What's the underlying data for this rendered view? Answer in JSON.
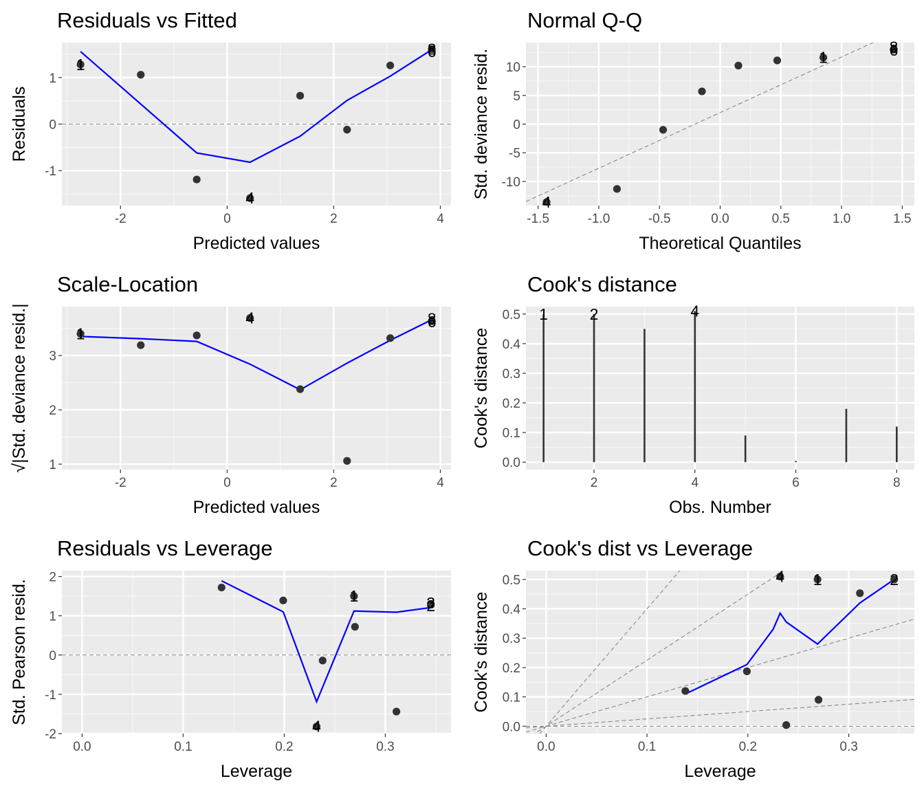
{
  "chart_data": [
    {
      "type": "scatter",
      "title": "Residuals vs Fitted",
      "xlabel": "Predicted values",
      "ylabel": "Residuals",
      "xlim": [
        -3.1,
        4.2
      ],
      "ylim": [
        -1.75,
        1.75
      ],
      "xticks": [
        -2,
        0,
        2,
        4
      ],
      "yticks": [
        -1,
        0,
        1
      ],
      "x_tick_labels": [
        "-2",
        "0",
        "2",
        "4"
      ],
      "y_tick_labels": [
        "-1",
        "0",
        "1"
      ],
      "grid": true,
      "hline": 0,
      "points": [
        {
          "x": -2.75,
          "y": 1.28
        },
        {
          "x": -1.62,
          "y": 1.06
        },
        {
          "x": -0.57,
          "y": -1.19
        },
        {
          "x": 0.43,
          "y": -1.59
        },
        {
          "x": 1.37,
          "y": 0.61
        },
        {
          "x": 2.25,
          "y": -0.12
        },
        {
          "x": 3.06,
          "y": 1.26
        },
        {
          "x": 3.84,
          "y": 1.61
        }
      ],
      "point_labels": [
        {
          "x": -2.75,
          "y": 1.28,
          "text": "1"
        },
        {
          "x": 0.43,
          "y": -1.59,
          "text": "4"
        },
        {
          "x": 3.84,
          "y": 1.61,
          "text": "8"
        },
        {
          "x": 3.84,
          "y": 1.56,
          "text": "6"
        }
      ],
      "smooth": {
        "x": [
          -2.75,
          -1.62,
          -0.57,
          0.43,
          1.37,
          2.25,
          3.06,
          3.84
        ],
        "y": [
          1.56,
          0.43,
          -0.62,
          -0.82,
          -0.26,
          0.51,
          1.03,
          1.6
        ]
      }
    },
    {
      "type": "scatter",
      "title": "Normal Q-Q",
      "xlabel": "Theoretical Quantiles",
      "ylabel": "Std. deviance resid.",
      "xlim": [
        -1.6,
        1.6
      ],
      "ylim": [
        -14.2,
        14.2
      ],
      "xticks": [
        -1.5,
        -1.0,
        -0.5,
        0.0,
        0.5,
        1.0,
        1.5
      ],
      "yticks": [
        -10,
        -5,
        0,
        5,
        10
      ],
      "x_tick_labels": [
        "-1.5",
        "-1.0",
        "-0.5",
        "0.0",
        "0.5",
        "1.0",
        "1.5"
      ],
      "y_tick_labels": [
        "-10",
        "-5",
        "0",
        "5",
        "10"
      ],
      "grid": true,
      "refline": {
        "x1": -1.6,
        "y1": -13.5,
        "x2": 1.6,
        "y2": 17.5
      },
      "points": [
        {
          "x": -1.43,
          "y": -13.6
        },
        {
          "x": -0.85,
          "y": -11.3
        },
        {
          "x": -0.47,
          "y": -1.0
        },
        {
          "x": -0.15,
          "y": 5.7
        },
        {
          "x": 0.15,
          "y": 10.2
        },
        {
          "x": 0.47,
          "y": 11.1
        },
        {
          "x": 0.85,
          "y": 11.6
        },
        {
          "x": 1.43,
          "y": 13.0
        }
      ],
      "point_labels": [
        {
          "x": -1.43,
          "y": -13.6,
          "text": "4"
        },
        {
          "x": 0.85,
          "y": 11.6,
          "text": "1"
        },
        {
          "x": 1.43,
          "y": 13.4,
          "text": "8"
        },
        {
          "x": 1.43,
          "y": 12.9,
          "text": "6"
        }
      ]
    },
    {
      "type": "scatter",
      "title": "Scale-Location",
      "xlabel": "Predicted values",
      "ylabel": "|Std. deviance resid.|",
      "ylabel_sqrt": "√",
      "xlim": [
        -3.1,
        4.2
      ],
      "ylim": [
        0.9,
        3.9
      ],
      "xticks": [
        -2,
        0,
        2,
        4
      ],
      "yticks": [
        1,
        2,
        3
      ],
      "x_tick_labels": [
        "-2",
        "0",
        "2",
        "4"
      ],
      "y_tick_labels": [
        "1",
        "2",
        "3"
      ],
      "grid": true,
      "points": [
        {
          "x": -2.75,
          "y": 3.4
        },
        {
          "x": -1.62,
          "y": 3.19
        },
        {
          "x": -0.57,
          "y": 3.37
        },
        {
          "x": 0.43,
          "y": 3.69
        },
        {
          "x": 1.37,
          "y": 2.38
        },
        {
          "x": 2.25,
          "y": 1.06
        },
        {
          "x": 3.06,
          "y": 3.32
        },
        {
          "x": 3.84,
          "y": 3.63
        }
      ],
      "point_labels": [
        {
          "x": -2.75,
          "y": 3.4,
          "text": "1"
        },
        {
          "x": 0.43,
          "y": 3.69,
          "text": "4"
        },
        {
          "x": 3.84,
          "y": 3.68,
          "text": "8"
        },
        {
          "x": 3.84,
          "y": 3.62,
          "text": "6"
        }
      ],
      "smooth": {
        "x": [
          -2.75,
          -1.62,
          -0.57,
          0.43,
          1.37,
          2.25,
          3.06,
          3.84
        ],
        "y": [
          3.35,
          3.31,
          3.26,
          2.84,
          2.37,
          2.86,
          3.28,
          3.66
        ]
      }
    },
    {
      "type": "bar",
      "title": "Cook's distance",
      "xlabel": "Obs. Number",
      "ylabel": "Cook's distance",
      "xlim": [
        0.65,
        8.35
      ],
      "ylim": [
        -0.025,
        0.525
      ],
      "xticks": [
        2,
        4,
        6,
        8
      ],
      "yticks": [
        0.0,
        0.1,
        0.2,
        0.3,
        0.4,
        0.5
      ],
      "x_tick_labels": [
        "2",
        "4",
        "6",
        "8"
      ],
      "y_tick_labels": [
        "0.0",
        "0.1",
        "0.2",
        "0.3",
        "0.4",
        "0.5"
      ],
      "grid": true,
      "categories": [
        1,
        2,
        3,
        4,
        5,
        6,
        7,
        8
      ],
      "values": [
        0.5,
        0.5,
        0.45,
        0.51,
        0.09,
        0.004,
        0.18,
        0.12
      ],
      "point_labels": [
        {
          "x": 1,
          "y": 0.5,
          "text": "1"
        },
        {
          "x": 2,
          "y": 0.5,
          "text": "2"
        },
        {
          "x": 4,
          "y": 0.51,
          "text": "4"
        }
      ]
    },
    {
      "type": "scatter",
      "title": "Residuals vs Leverage",
      "xlabel": "Leverage",
      "ylabel": "Std. Pearson resid.",
      "xlim": [
        -0.02,
        0.365
      ],
      "ylim": [
        -2.0,
        2.15
      ],
      "xticks": [
        0.0,
        0.1,
        0.2,
        0.3
      ],
      "yticks": [
        -2,
        -1,
        0,
        1,
        2
      ],
      "x_tick_labels": [
        "0.0",
        "0.1",
        "0.2",
        "0.3"
      ],
      "y_tick_labels": [
        "-2",
        "-1",
        "0",
        "1",
        "2"
      ],
      "grid": true,
      "hline": 0,
      "points": [
        {
          "x": 0.138,
          "y": 1.72
        },
        {
          "x": 0.199,
          "y": 1.39
        },
        {
          "x": 0.232,
          "y": -1.82
        },
        {
          "x": 0.238,
          "y": -0.14
        },
        {
          "x": 0.269,
          "y": 1.5
        },
        {
          "x": 0.27,
          "y": 0.72
        },
        {
          "x": 0.311,
          "y": -1.44
        },
        {
          "x": 0.345,
          "y": 1.3
        }
      ],
      "point_labels": [
        {
          "x": 0.232,
          "y": -1.82,
          "text": "4"
        },
        {
          "x": 0.269,
          "y": 1.5,
          "text": "1"
        },
        {
          "x": 0.345,
          "y": 1.33,
          "text": "3"
        },
        {
          "x": 0.345,
          "y": 1.26,
          "text": "2"
        }
      ],
      "smooth": {
        "x": [
          0.138,
          0.199,
          0.232,
          0.269,
          0.311,
          0.345
        ],
        "y": [
          1.89,
          1.1,
          -1.19,
          1.12,
          1.09,
          1.21
        ]
      }
    },
    {
      "type": "scatter",
      "title": "Cook's dist vs Leverage",
      "xlabel": "Leverage",
      "ylabel": "Cook's distance",
      "xlim": [
        -0.02,
        0.365
      ],
      "ylim": [
        -0.025,
        0.53
      ],
      "xticks": [
        0.0,
        0.1,
        0.2,
        0.3
      ],
      "yticks": [
        0.0,
        0.1,
        0.2,
        0.3,
        0.4,
        0.5
      ],
      "x_tick_labels": [
        "0.0",
        "0.1",
        "0.2",
        "0.3"
      ],
      "y_tick_labels": [
        "0.0",
        "0.1",
        "0.2",
        "0.3",
        "0.4",
        "0.5"
      ],
      "grid": true,
      "ref_slopes": [
        0,
        0.25,
        1.0,
        2.25,
        4.0
      ],
      "points": [
        {
          "x": 0.138,
          "y": 0.12
        },
        {
          "x": 0.199,
          "y": 0.187
        },
        {
          "x": 0.232,
          "y": 0.51
        },
        {
          "x": 0.238,
          "y": 0.004
        },
        {
          "x": 0.269,
          "y": 0.5
        },
        {
          "x": 0.27,
          "y": 0.09
        },
        {
          "x": 0.311,
          "y": 0.453
        },
        {
          "x": 0.345,
          "y": 0.5
        }
      ],
      "point_labels": [
        {
          "x": 0.232,
          "y": 0.51,
          "text": "4"
        },
        {
          "x": 0.269,
          "y": 0.5,
          "text": "1"
        },
        {
          "x": 0.345,
          "y": 0.5,
          "text": "2"
        }
      ],
      "smooth": {
        "x": [
          0.138,
          0.199,
          0.225,
          0.232,
          0.238,
          0.269,
          0.311,
          0.345
        ],
        "y": [
          0.11,
          0.21,
          0.33,
          0.385,
          0.355,
          0.28,
          0.42,
          0.5
        ]
      }
    }
  ]
}
